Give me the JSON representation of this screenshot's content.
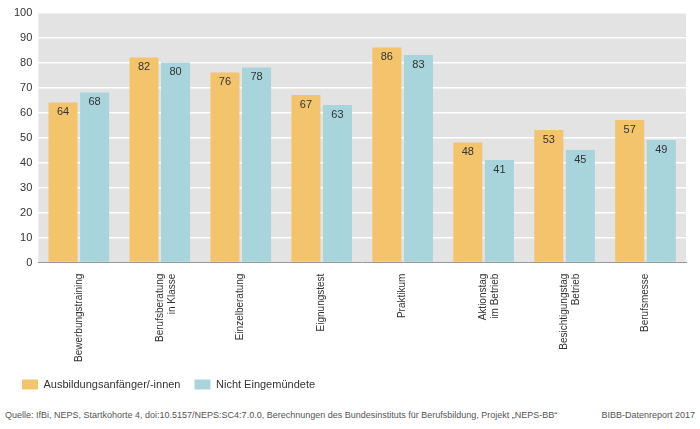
{
  "chart_data": {
    "type": "bar",
    "categories": [
      "Bewerbungstraining",
      "Berufsberatung\nin Klasse",
      "Einzelberatung",
      "Eignungstest",
      "Praktikum",
      "Aktionstag\nim Betrieb",
      "Besichtigungstag\nBetrieb",
      "Berufsmesse"
    ],
    "series": [
      {
        "name": "Ausbildungsanfänger/-innen",
        "color": "#f3c46c",
        "values": [
          64,
          82,
          76,
          67,
          86,
          48,
          53,
          57
        ]
      },
      {
        "name": "Nicht Eingemündete",
        "color": "#a8d4db",
        "values": [
          68,
          80,
          78,
          63,
          83,
          41,
          45,
          49
        ]
      }
    ],
    "ylim": [
      0,
      100
    ],
    "yticks": [
      0,
      10,
      20,
      30,
      40,
      50,
      60,
      70,
      80,
      90,
      100
    ],
    "grid": true,
    "legend": "bottom",
    "data_labels": true,
    "annotations": [
      "Quelle: IfBi, NEPS, Startkohorte 4, doi:10.5157/NEPS:SC4:7.0.0, Berechnungen des Bundesinstituts für Berufsbildung, Projekt „NEPS-BB“",
      "BIBB-Datenreport 2017"
    ]
  }
}
